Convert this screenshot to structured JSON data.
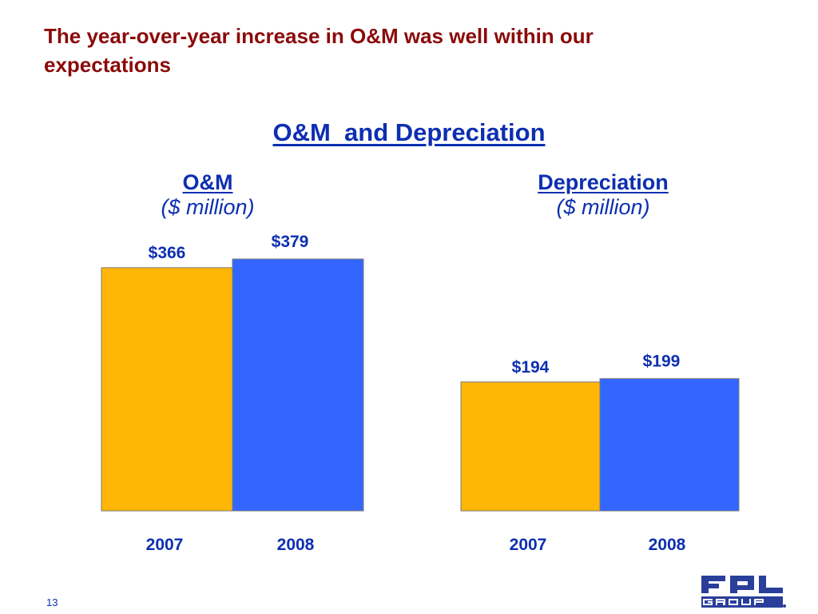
{
  "slide": {
    "title": "The year-over-year increase in O&M was well within our expectations",
    "heading": "O&M  and Depreciation",
    "page_number": "13",
    "logo_text": "FPL GROUP"
  },
  "colors": {
    "title": "#8b0a0a",
    "text_blue": "#0d2fb0",
    "bar_2007": "#ffb607",
    "bar_2008": "#3366ff"
  },
  "chart_data": [
    {
      "type": "bar",
      "title": "O&M",
      "unit": "($ million)",
      "categories": [
        "2007",
        "2008"
      ],
      "values": [
        366,
        379
      ],
      "value_labels": [
        "$366",
        "$379"
      ],
      "ylim": [
        0,
        379
      ]
    },
    {
      "type": "bar",
      "title": "Depreciation",
      "unit": "($ million)",
      "categories": [
        "2007",
        "2008"
      ],
      "values": [
        194,
        199
      ],
      "value_labels": [
        "$194",
        "$199"
      ],
      "ylim": [
        0,
        379
      ]
    }
  ]
}
